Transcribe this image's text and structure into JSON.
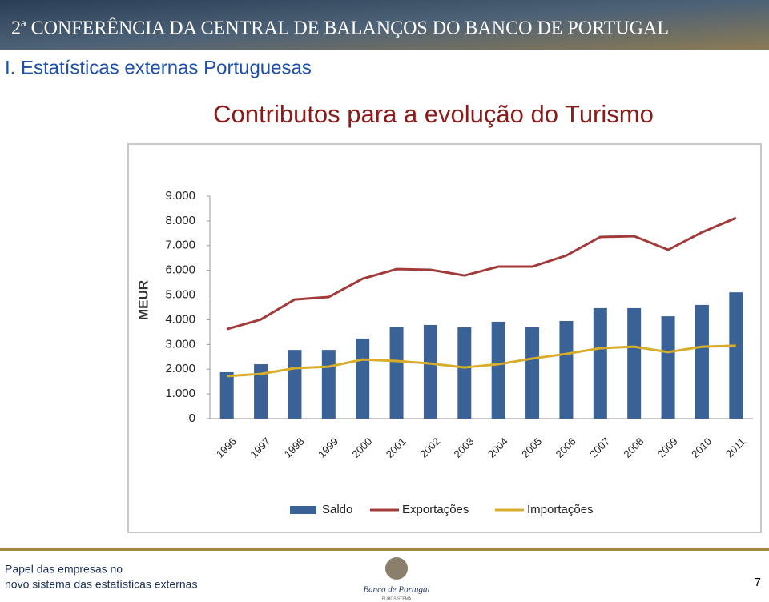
{
  "header": {
    "banner": "2ª CONFERÊNCIA DA CENTRAL DE BALANÇOS DO BANCO DE PORTUGAL",
    "section": "I. Estatísticas externas Portuguesas"
  },
  "chart_data": {
    "type": "bar",
    "title": "Contributos para a evolução do Turismo",
    "y_label": "MEUR",
    "categories": [
      "1996",
      "1997",
      "1998",
      "1999",
      "2000",
      "2001",
      "2002",
      "2003",
      "2004",
      "2005",
      "2006",
      "2007",
      "2008",
      "2009",
      "2010",
      "2011"
    ],
    "series": [
      {
        "name": "Saldo",
        "type": "bar",
        "color": "#3a6296",
        "values": [
          1880,
          2200,
          2780,
          2780,
          3240,
          3720,
          3790,
          3690,
          3920,
          3690,
          3950,
          4470,
          4470,
          4140,
          4600,
          5110
        ]
      },
      {
        "name": "Exportações",
        "type": "line",
        "color": "#a33a3a",
        "values": [
          3620,
          4010,
          4820,
          4920,
          5660,
          6050,
          6020,
          5790,
          6150,
          6150,
          6600,
          7350,
          7380,
          6830,
          7540,
          8120
        ]
      },
      {
        "name": "Importações",
        "type": "line",
        "color": "#d8ad2a",
        "values": [
          1720,
          1810,
          2040,
          2100,
          2390,
          2330,
          2230,
          2070,
          2200,
          2430,
          2620,
          2850,
          2910,
          2690,
          2910,
          2950
        ]
      }
    ],
    "ylim": [
      0,
      9000
    ],
    "yticks": [
      0,
      {
        "value": 1000,
        "label": "1.000"
      },
      {
        "value": 2000,
        "label": "2.000"
      },
      {
        "value": 3000,
        "label": "3.000"
      },
      {
        "value": 4000,
        "label": "4.000"
      },
      {
        "value": 5000,
        "label": "5.000"
      },
      {
        "value": 6000,
        "label": "6.000"
      },
      {
        "value": 7000,
        "label": "7.000"
      },
      {
        "value": 8000,
        "label": "8.000"
      },
      {
        "value": 9000,
        "label": "9.000"
      }
    ],
    "grid": false,
    "legend": "bottom"
  },
  "footer": {
    "line1": "Papel das empresas no",
    "line2": "novo sistema das estatísticas externas",
    "logo": "Banco de Portugal",
    "logo_sub": "EUROSISTEMA",
    "page": "7"
  }
}
